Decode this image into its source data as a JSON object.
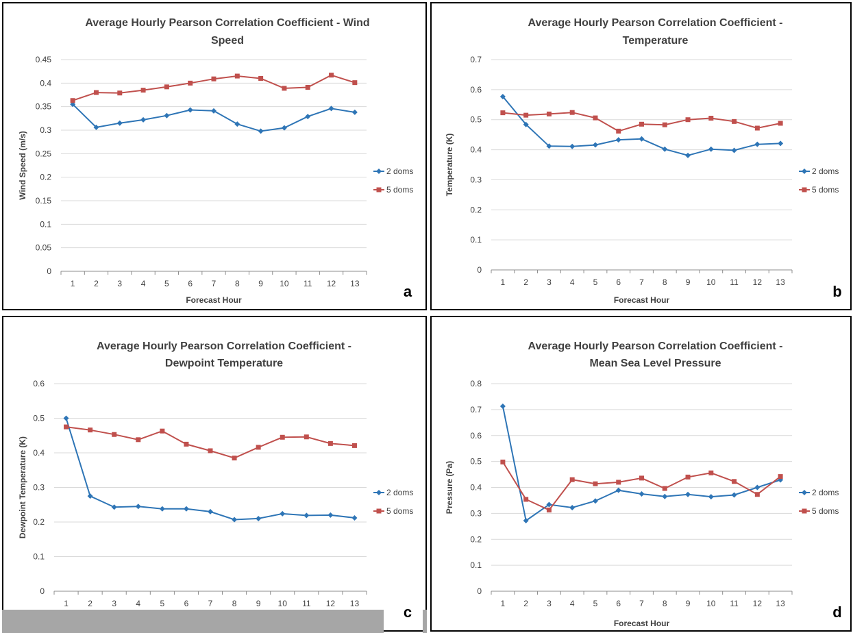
{
  "chart_data": [
    {
      "type": "line",
      "title": "Average Hourly Pearson Correlation Coefficient - Wind Speed",
      "title_lines": [
        "Average Hourly Pearson Correlation Coefficient - Wind",
        "Speed"
      ],
      "xlabel": "Forecast Hour",
      "ylabel": "Wind Speed (m/s)",
      "x": [
        1,
        2,
        3,
        4,
        5,
        6,
        7,
        8,
        9,
        10,
        11,
        12,
        13
      ],
      "yticks": [
        "0",
        "0.05",
        "0.1",
        "0.15",
        "0.2",
        "0.25",
        "0.3",
        "0.35",
        "0.4",
        "0.45"
      ],
      "ylim": [
        0,
        0.45
      ],
      "grid": true,
      "legend": "right",
      "panel_label": "a",
      "series": [
        {
          "name": "2 doms",
          "color": "#2e75b6",
          "marker": "diamond",
          "values": [
            0.355,
            0.306,
            0.315,
            0.322,
            0.331,
            0.343,
            0.341,
            0.313,
            0.298,
            0.305,
            0.329,
            0.346,
            0.338
          ]
        },
        {
          "name": "5 doms",
          "color": "#c0504d",
          "marker": "square",
          "values": [
            0.363,
            0.38,
            0.379,
            0.385,
            0.392,
            0.4,
            0.409,
            0.415,
            0.41,
            0.389,
            0.391,
            0.417,
            0.401
          ]
        }
      ]
    },
    {
      "type": "line",
      "title": "Average Hourly Pearson Correlation Coefficient - Temperature",
      "title_lines": [
        "Average Hourly Pearson Correlation Coefficient -",
        "Temperature"
      ],
      "xlabel": "Forecast Hour",
      "ylabel": "Temperature (K)",
      "x": [
        1,
        2,
        3,
        4,
        5,
        6,
        7,
        8,
        9,
        10,
        11,
        12,
        13
      ],
      "yticks": [
        "0",
        "0.1",
        "0.2",
        "0.3",
        "0.4",
        "0.5",
        "0.6",
        "0.7"
      ],
      "ylim": [
        0,
        0.7
      ],
      "grid": true,
      "legend": "right",
      "panel_label": "b",
      "series": [
        {
          "name": "2 doms",
          "color": "#2e75b6",
          "marker": "diamond",
          "values": [
            0.577,
            0.484,
            0.412,
            0.411,
            0.416,
            0.433,
            0.436,
            0.402,
            0.381,
            0.402,
            0.398,
            0.418,
            0.421
          ]
        },
        {
          "name": "5 doms",
          "color": "#c0504d",
          "marker": "square",
          "values": [
            0.523,
            0.515,
            0.519,
            0.524,
            0.506,
            0.462,
            0.485,
            0.483,
            0.5,
            0.505,
            0.494,
            0.472,
            0.488
          ]
        }
      ]
    },
    {
      "type": "line",
      "title": "Average Hourly Pearson Correlation Coefficient - Dewpoint Temperature",
      "title_lines": [
        "Average Hourly Pearson Correlation Coefficient -",
        "Dewpoint Temperature"
      ],
      "xlabel": "",
      "ylabel": "Dewpoint Temperature (K)",
      "x": [
        1,
        2,
        3,
        4,
        5,
        6,
        7,
        8,
        9,
        10,
        11,
        12,
        13
      ],
      "yticks": [
        "0",
        "0.1",
        "0.2",
        "0.3",
        "0.4",
        "0.5",
        "0.6"
      ],
      "ylim": [
        0,
        0.6
      ],
      "grid": true,
      "legend": "right",
      "panel_label": "c",
      "series": [
        {
          "name": "2 doms",
          "color": "#2e75b6",
          "marker": "diamond",
          "values": [
            0.5,
            0.275,
            0.243,
            0.245,
            0.238,
            0.238,
            0.23,
            0.207,
            0.21,
            0.224,
            0.219,
            0.22,
            0.212
          ]
        },
        {
          "name": "5 doms",
          "color": "#c0504d",
          "marker": "square",
          "values": [
            0.475,
            0.466,
            0.453,
            0.438,
            0.463,
            0.425,
            0.406,
            0.385,
            0.416,
            0.445,
            0.446,
            0.427,
            0.421
          ]
        }
      ]
    },
    {
      "type": "line",
      "title": "Average Hourly Pearson Correlation Coefficient - Mean Sea Level Pressure",
      "title_lines": [
        "Average Hourly Pearson Correlation Coefficient -",
        "Mean Sea Level Pressure"
      ],
      "xlabel": "Forecast Hour",
      "ylabel": "Pressure (Pa)",
      "x": [
        1,
        2,
        3,
        4,
        5,
        6,
        7,
        8,
        9,
        10,
        11,
        12,
        13
      ],
      "yticks": [
        "0",
        "0.1",
        "0.2",
        "0.3",
        "0.4",
        "0.5",
        "0.6",
        "0.7",
        "0.8"
      ],
      "ylim": [
        0,
        0.8
      ],
      "grid": true,
      "legend": "right",
      "panel_label": "d",
      "series": [
        {
          "name": "2 doms",
          "color": "#2e75b6",
          "marker": "diamond",
          "values": [
            0.713,
            0.272,
            0.334,
            0.322,
            0.348,
            0.389,
            0.375,
            0.365,
            0.373,
            0.364,
            0.371,
            0.4,
            0.429
          ]
        },
        {
          "name": "5 doms",
          "color": "#c0504d",
          "marker": "square",
          "values": [
            0.498,
            0.354,
            0.313,
            0.43,
            0.414,
            0.42,
            0.436,
            0.396,
            0.44,
            0.456,
            0.423,
            0.373,
            0.442
          ]
        }
      ]
    }
  ]
}
